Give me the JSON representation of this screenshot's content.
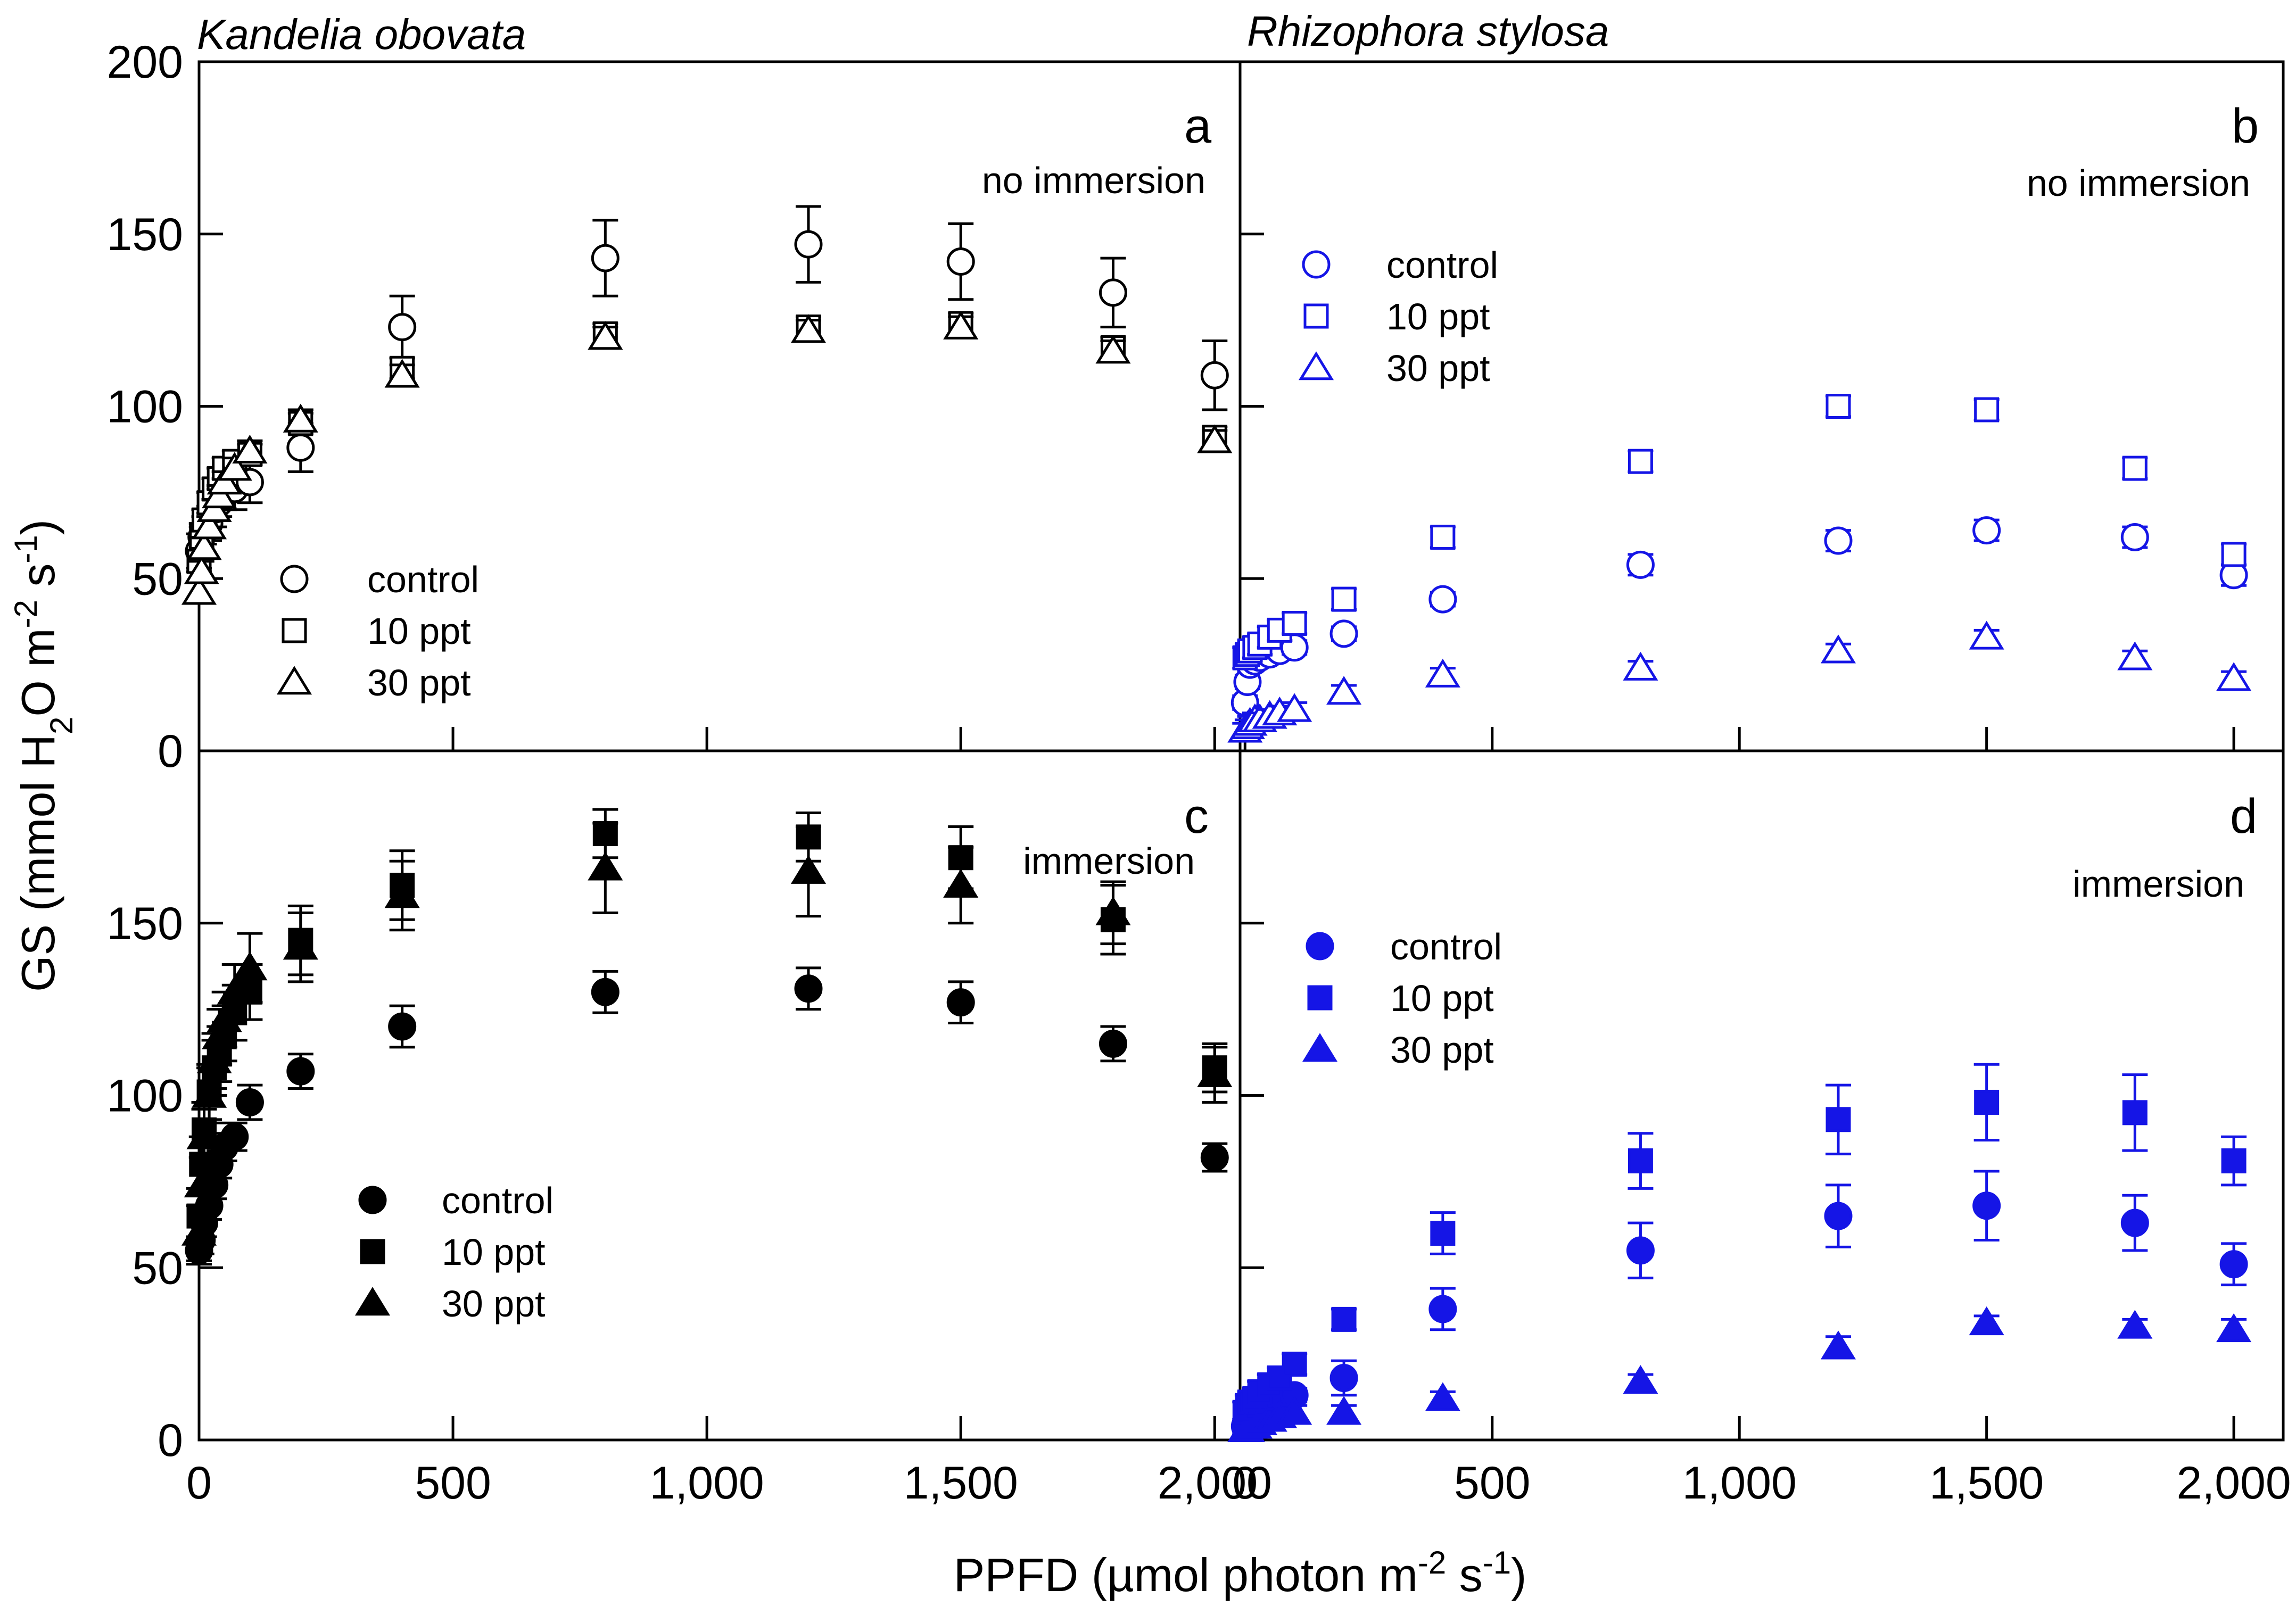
{
  "figure": {
    "ylabel": {
      "main": "GS (mmol H",
      "sub1": "2",
      "mid": "O m",
      "sup1": "-2",
      "mid2": " s",
      "sup2": "-1",
      "end": ")"
    },
    "xlabel": {
      "main": "PPFD (",
      "mu": "µ",
      "rest": "mol photon m",
      "sup1": "-2",
      "mid": " s",
      "sup2": "-1",
      "end": ")"
    },
    "species_left": "Kandelia obovata",
    "species_right": "Rhizophora stylosa",
    "colors": {
      "black": "#000000",
      "blue": "#1515e6"
    }
  },
  "chart_data": [
    {
      "id": "a",
      "type": "scatter",
      "letter": "a",
      "condition": "no immersion",
      "color": "#000000",
      "filled": false,
      "xlim": [
        0,
        2050
      ],
      "ylim": [
        0,
        200
      ],
      "y_ticks": [
        0,
        50,
        100,
        150,
        200
      ],
      "x_ticks": [],
      "legend": [
        "control",
        "10 ppt",
        "30 ppt"
      ],
      "series": [
        {
          "name": "control",
          "marker": "circle",
          "points": [
            [
              0,
              58,
              5
            ],
            [
              5,
              62,
              4
            ],
            [
              10,
              64,
              4
            ],
            [
              20,
              66,
              5
            ],
            [
              30,
              70,
              5
            ],
            [
              40,
              72,
              4
            ],
            [
              50,
              74,
              4
            ],
            [
              70,
              76,
              6
            ],
            [
              100,
              78,
              6
            ],
            [
              200,
              88,
              7
            ],
            [
              400,
              123,
              9
            ],
            [
              800,
              143,
              11
            ],
            [
              1200,
              147,
              11
            ],
            [
              1500,
              142,
              11
            ],
            [
              1800,
              133,
              10
            ],
            [
              2000,
              109,
              10
            ]
          ]
        },
        {
          "name": "10 ppt",
          "marker": "square",
          "points": [
            [
              0,
              55,
              3
            ],
            [
              5,
              62,
              3
            ],
            [
              10,
              67,
              3
            ],
            [
              20,
              72,
              3
            ],
            [
              30,
              76,
              3
            ],
            [
              40,
              79,
              3
            ],
            [
              50,
              82,
              3
            ],
            [
              70,
              84,
              3
            ],
            [
              100,
              86,
              3
            ],
            [
              200,
              95,
              3
            ],
            [
              400,
              111,
              3
            ],
            [
              800,
              121,
              3
            ],
            [
              1200,
              123,
              3
            ],
            [
              1500,
              124,
              3
            ],
            [
              1800,
              117,
              3
            ],
            [
              2000,
              91,
              3
            ]
          ]
        },
        {
          "name": "30 ppt",
          "marker": "triangle",
          "points": [
            [
              0,
              46,
              3
            ],
            [
              5,
              52,
              3
            ],
            [
              10,
              59,
              3
            ],
            [
              20,
              65,
              3
            ],
            [
              30,
              70,
              3
            ],
            [
              40,
              74,
              3
            ],
            [
              50,
              78,
              3
            ],
            [
              70,
              82,
              3
            ],
            [
              100,
              87,
              3
            ],
            [
              200,
              96,
              3
            ],
            [
              400,
              109,
              3
            ],
            [
              800,
              120,
              3
            ],
            [
              1200,
              122,
              3
            ],
            [
              1500,
              123,
              3
            ],
            [
              1800,
              116,
              3
            ],
            [
              2000,
              90,
              3
            ]
          ]
        }
      ]
    },
    {
      "id": "b",
      "type": "scatter",
      "letter": "b",
      "condition": "no immersion",
      "color": "#1515e6",
      "filled": false,
      "xlim": [
        -10,
        2100
      ],
      "ylim": [
        0,
        200
      ],
      "y_ticks": [
        0,
        50,
        100,
        150,
        200
      ],
      "x_ticks": [],
      "legend": [
        "control",
        "10 ppt",
        "30 ppt"
      ],
      "series": [
        {
          "name": "control",
          "marker": "circle",
          "points": [
            [
              0,
              14,
              2
            ],
            [
              5,
              20,
              2
            ],
            [
              10,
              25,
              2
            ],
            [
              20,
              26,
              2
            ],
            [
              30,
              27,
              2
            ],
            [
              50,
              28,
              2
            ],
            [
              70,
              29,
              2
            ],
            [
              100,
              30,
              2
            ],
            [
              200,
              34,
              2
            ],
            [
              400,
              44,
              2
            ],
            [
              800,
              54,
              3
            ],
            [
              1200,
              61,
              3
            ],
            [
              1500,
              64,
              3
            ],
            [
              1800,
              62,
              3
            ],
            [
              2000,
              51,
              3
            ]
          ]
        },
        {
          "name": "10 ppt",
          "marker": "square",
          "points": [
            [
              0,
              27,
              3
            ],
            [
              5,
              28,
              3
            ],
            [
              10,
              29,
              3
            ],
            [
              20,
              30,
              3
            ],
            [
              30,
              31,
              3
            ],
            [
              50,
              33,
              3
            ],
            [
              70,
              35,
              3
            ],
            [
              100,
              37,
              3
            ],
            [
              200,
              44,
              3
            ],
            [
              400,
              62,
              3
            ],
            [
              800,
              84,
              3
            ],
            [
              1200,
              100,
              3
            ],
            [
              1500,
              99,
              3
            ],
            [
              1800,
              82,
              3
            ],
            [
              2000,
              57,
              3
            ]
          ]
        },
        {
          "name": "30 ppt",
          "marker": "triangle",
          "points": [
            [
              0,
              6,
              2
            ],
            [
              5,
              7,
              2
            ],
            [
              10,
              8,
              2
            ],
            [
              20,
              9,
              2
            ],
            [
              30,
              9,
              2
            ],
            [
              50,
              10,
              2
            ],
            [
              70,
              11,
              2
            ],
            [
              100,
              12,
              2
            ],
            [
              200,
              17,
              2
            ],
            [
              400,
              22,
              2
            ],
            [
              800,
              24,
              2
            ],
            [
              1200,
              29,
              2
            ],
            [
              1500,
              33,
              2
            ],
            [
              1800,
              27,
              2
            ],
            [
              2000,
              21,
              2
            ]
          ]
        }
      ]
    },
    {
      "id": "c",
      "type": "scatter",
      "letter": "c",
      "condition": "immersion",
      "color": "#000000",
      "filled": true,
      "xlim": [
        0,
        2050
      ],
      "ylim": [
        0,
        200
      ],
      "y_ticks": [
        0,
        50,
        100,
        150
      ],
      "x_ticks": [
        0,
        500,
        1000,
        1500,
        2000
      ],
      "x_tick_labels": [
        "0",
        "500",
        "1,000",
        "1,500",
        "2,000"
      ],
      "legend": [
        "control",
        "10 ppt",
        "30 ppt"
      ],
      "series": [
        {
          "name": "control",
          "marker": "circle",
          "points": [
            [
              0,
              55,
              4
            ],
            [
              5,
              58,
              4
            ],
            [
              10,
              63,
              4
            ],
            [
              20,
              68,
              4
            ],
            [
              30,
              74,
              4
            ],
            [
              40,
              80,
              4
            ],
            [
              50,
              85,
              4
            ],
            [
              70,
              88,
              4
            ],
            [
              100,
              98,
              5
            ],
            [
              200,
              107,
              5
            ],
            [
              400,
              120,
              6
            ],
            [
              800,
              130,
              6
            ],
            [
              1200,
              131,
              6
            ],
            [
              1500,
              127,
              6
            ],
            [
              1800,
              115,
              5
            ],
            [
              2000,
              82,
              4
            ]
          ]
        },
        {
          "name": "10 ppt",
          "marker": "square",
          "points": [
            [
              0,
              65,
              8
            ],
            [
              5,
              80,
              8
            ],
            [
              10,
              90,
              8
            ],
            [
              20,
              101,
              8
            ],
            [
              30,
              108,
              8
            ],
            [
              40,
              112,
              8
            ],
            [
              50,
              118,
              8
            ],
            [
              70,
              124,
              8
            ],
            [
              100,
              130,
              8
            ],
            [
              200,
              145,
              10
            ],
            [
              400,
              161,
              10
            ],
            [
              800,
              176,
              7
            ],
            [
              1200,
              175,
              7
            ],
            [
              1500,
              169,
              9
            ],
            [
              1800,
              151,
              10
            ],
            [
              2000,
              108,
              7
            ]
          ]
        },
        {
          "name": "30 ppt",
          "marker": "triangle",
          "points": [
            [
              0,
              60,
              8
            ],
            [
              5,
              74,
              8
            ],
            [
              10,
              88,
              8
            ],
            [
              20,
              100,
              8
            ],
            [
              30,
              110,
              8
            ],
            [
              40,
              117,
              8
            ],
            [
              50,
              122,
              8
            ],
            [
              70,
              130,
              8
            ],
            [
              100,
              137,
              10
            ],
            [
              200,
              143,
              10
            ],
            [
              400,
              158,
              10
            ],
            [
              800,
              166,
              13
            ],
            [
              1200,
              165,
              13
            ],
            [
              1500,
              161,
              11
            ],
            [
              1800,
              153,
              9
            ],
            [
              2000,
              106,
              8
            ]
          ]
        }
      ]
    },
    {
      "id": "d",
      "type": "scatter",
      "letter": "d",
      "condition": "immersion",
      "color": "#1515e6",
      "filled": true,
      "xlim": [
        -10,
        2100
      ],
      "ylim": [
        0,
        200
      ],
      "y_ticks": [
        0,
        50,
        100,
        150
      ],
      "x_ticks": [
        0,
        500,
        1000,
        1500,
        2000
      ],
      "x_tick_labels": [
        "0",
        "500",
        "1,000",
        "1,500",
        "2,000"
      ],
      "legend": [
        "control",
        "10 ppt",
        "30 ppt"
      ],
      "series": [
        {
          "name": "control",
          "marker": "circle",
          "points": [
            [
              0,
              4,
              2
            ],
            [
              5,
              6,
              2
            ],
            [
              10,
              8,
              2
            ],
            [
              20,
              9,
              2
            ],
            [
              30,
              10,
              2
            ],
            [
              50,
              11,
              2
            ],
            [
              70,
              12,
              2
            ],
            [
              100,
              13,
              2
            ],
            [
              200,
              18,
              5
            ],
            [
              400,
              38,
              6
            ],
            [
              800,
              55,
              8
            ],
            [
              1200,
              65,
              9
            ],
            [
              1500,
              68,
              10
            ],
            [
              1800,
              63,
              8
            ],
            [
              2000,
              51,
              6
            ]
          ]
        },
        {
          "name": "10 ppt",
          "marker": "square",
          "points": [
            [
              0,
              8,
              3
            ],
            [
              5,
              10,
              3
            ],
            [
              10,
              11,
              3
            ],
            [
              20,
              12,
              3
            ],
            [
              30,
              14,
              3
            ],
            [
              50,
              16,
              3
            ],
            [
              70,
              18,
              3
            ],
            [
              100,
              22,
              3
            ],
            [
              200,
              35,
              3
            ],
            [
              400,
              60,
              6
            ],
            [
              800,
              81,
              8
            ],
            [
              1200,
              93,
              10
            ],
            [
              1500,
              98,
              11
            ],
            [
              1800,
              95,
              11
            ],
            [
              2000,
              81,
              7
            ]
          ]
        },
        {
          "name": "30 ppt",
          "marker": "triangle",
          "points": [
            [
              0,
              3,
              2
            ],
            [
              5,
              3,
              2
            ],
            [
              10,
              4,
              2
            ],
            [
              20,
              4,
              2
            ],
            [
              30,
              5,
              2
            ],
            [
              50,
              6,
              2
            ],
            [
              70,
              7,
              2
            ],
            [
              100,
              8,
              2
            ],
            [
              200,
              8,
              2
            ],
            [
              400,
              12,
              2
            ],
            [
              800,
              17,
              2
            ],
            [
              1200,
              27,
              3
            ],
            [
              1500,
              34,
              2
            ],
            [
              1800,
              33,
              2
            ],
            [
              2000,
              32,
              3
            ]
          ]
        }
      ]
    }
  ]
}
